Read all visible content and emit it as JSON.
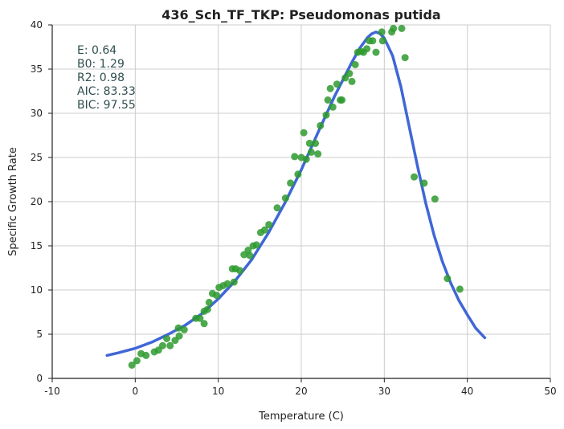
{
  "chart_data": {
    "type": "scatter",
    "title": "436_Sch_TF_TKP: Pseudomonas putida",
    "xlabel": "Temperature (C)",
    "ylabel": "Specific Growth Rate",
    "xlim": [
      -10,
      50
    ],
    "ylim": [
      0,
      40
    ],
    "xticks": [
      -10,
      0,
      10,
      20,
      30,
      40,
      50
    ],
    "yticks": [
      0,
      5,
      10,
      15,
      20,
      25,
      30,
      35,
      40
    ],
    "grid": true,
    "colors": {
      "points": "#2e9a2e",
      "fit": "#3f67d6",
      "stats_text": "#2f4f4f",
      "grid": "#cccccc"
    },
    "stats": [
      "E:  0.64",
      "B0:  1.29",
      "R2:  0.98",
      "AIC: 83.33",
      "BIC: 97.55"
    ],
    "points": [
      [
        -0.4,
        1.5
      ],
      [
        0.2,
        2.0
      ],
      [
        0.7,
        2.8
      ],
      [
        1.3,
        2.6
      ],
      [
        2.3,
        3.0
      ],
      [
        2.8,
        3.2
      ],
      [
        3.3,
        3.7
      ],
      [
        3.8,
        4.5
      ],
      [
        4.2,
        3.7
      ],
      [
        4.8,
        4.3
      ],
      [
        5.3,
        4.8
      ],
      [
        5.2,
        5.7
      ],
      [
        5.9,
        5.5
      ],
      [
        7.3,
        6.8
      ],
      [
        7.8,
        6.8
      ],
      [
        8.3,
        6.2
      ],
      [
        8.3,
        7.6
      ],
      [
        8.7,
        7.8
      ],
      [
        8.9,
        8.6
      ],
      [
        9.3,
        9.6
      ],
      [
        9.8,
        9.4
      ],
      [
        10.1,
        10.3
      ],
      [
        10.6,
        10.5
      ],
      [
        11.1,
        10.7
      ],
      [
        11.7,
        12.4
      ],
      [
        12.1,
        12.4
      ],
      [
        11.9,
        10.9
      ],
      [
        12.6,
        12.2
      ],
      [
        13.1,
        14.0
      ],
      [
        13.6,
        14.5
      ],
      [
        13.8,
        13.9
      ],
      [
        14.2,
        15.0
      ],
      [
        14.6,
        15.1
      ],
      [
        15.1,
        16.5
      ],
      [
        15.6,
        16.8
      ],
      [
        16.1,
        17.4
      ],
      [
        17.1,
        19.3
      ],
      [
        18.1,
        20.4
      ],
      [
        18.7,
        22.1
      ],
      [
        19.2,
        25.1
      ],
      [
        19.6,
        23.1
      ],
      [
        20.0,
        25.0
      ],
      [
        20.3,
        27.8
      ],
      [
        20.6,
        24.8
      ],
      [
        21.0,
        26.6
      ],
      [
        21.2,
        25.6
      ],
      [
        21.7,
        26.6
      ],
      [
        22.0,
        25.4
      ],
      [
        22.3,
        28.6
      ],
      [
        23.0,
        29.8
      ],
      [
        23.2,
        31.5
      ],
      [
        23.5,
        32.8
      ],
      [
        23.8,
        30.7
      ],
      [
        24.3,
        33.3
      ],
      [
        24.7,
        31.5
      ],
      [
        24.9,
        31.5
      ],
      [
        25.3,
        34.0
      ],
      [
        25.8,
        34.5
      ],
      [
        26.1,
        33.6
      ],
      [
        26.5,
        35.5
      ],
      [
        26.8,
        36.9
      ],
      [
        27.2,
        37.0
      ],
      [
        27.5,
        36.9
      ],
      [
        27.9,
        37.3
      ],
      [
        28.2,
        38.2
      ],
      [
        28.6,
        38.2
      ],
      [
        29.0,
        36.9
      ],
      [
        29.8,
        38.2
      ],
      [
        29.7,
        39.2
      ],
      [
        30.9,
        39.2
      ],
      [
        31.1,
        39.6
      ],
      [
        32.1,
        39.6
      ],
      [
        32.5,
        36.3
      ],
      [
        33.6,
        22.8
      ],
      [
        34.8,
        22.1
      ],
      [
        36.1,
        20.3
      ],
      [
        37.6,
        11.3
      ],
      [
        39.1,
        10.1
      ]
    ],
    "fit_curve": [
      [
        -3.4,
        2.6
      ],
      [
        -2,
        2.9
      ],
      [
        0,
        3.4
      ],
      [
        2,
        4.1
      ],
      [
        4,
        5.0
      ],
      [
        6,
        6.0
      ],
      [
        8,
        7.3
      ],
      [
        10,
        9.0
      ],
      [
        12,
        11.0
      ],
      [
        14,
        13.4
      ],
      [
        16,
        16.4
      ],
      [
        18,
        19.8
      ],
      [
        20,
        23.6
      ],
      [
        22,
        27.8
      ],
      [
        24,
        31.9
      ],
      [
        26,
        35.6
      ],
      [
        27,
        37.3
      ],
      [
        28,
        38.6
      ],
      [
        28.5,
        39.0
      ],
      [
        29,
        39.2
      ],
      [
        29.5,
        39.0
      ],
      [
        30,
        38.5
      ],
      [
        31,
        36.5
      ],
      [
        32,
        33.0
      ],
      [
        33,
        28.5
      ],
      [
        34,
        24.0
      ],
      [
        35,
        19.8
      ],
      [
        36,
        16.2
      ],
      [
        37,
        13.2
      ],
      [
        38,
        10.8
      ],
      [
        39,
        8.8
      ],
      [
        40,
        7.2
      ],
      [
        41,
        5.7
      ],
      [
        42.1,
        4.6
      ]
    ]
  }
}
